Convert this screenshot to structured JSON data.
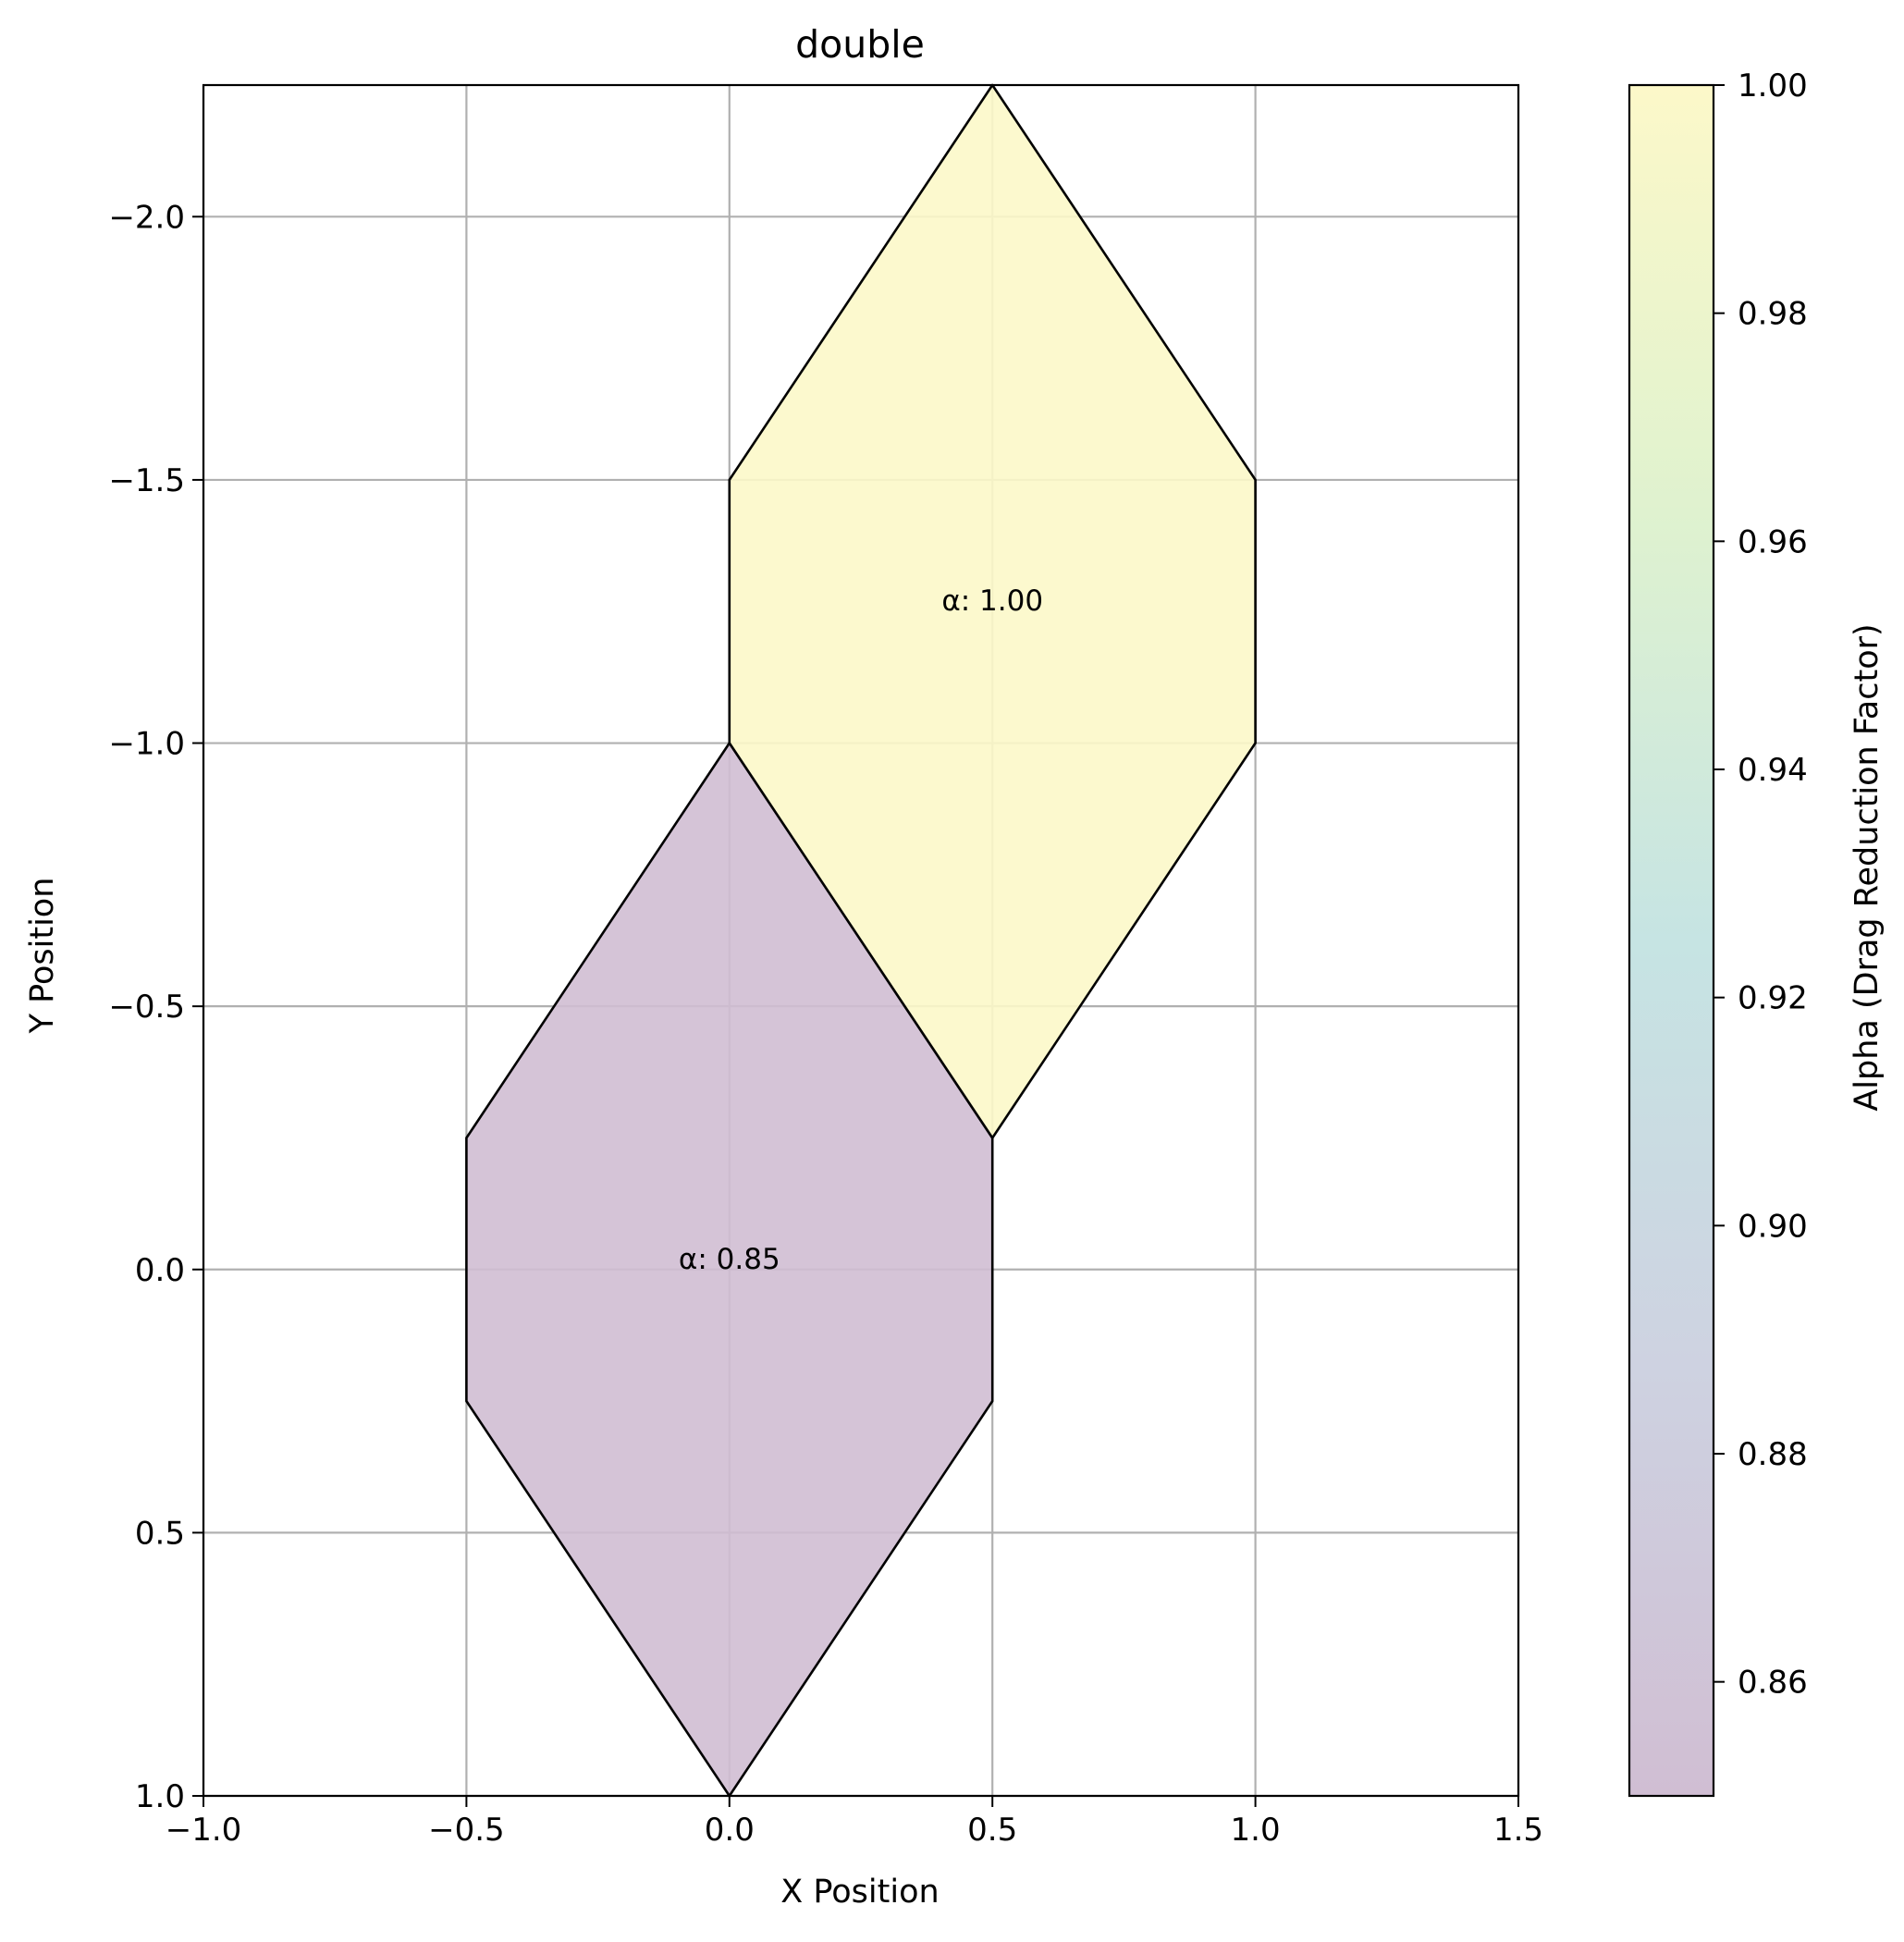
{
  "chart_data": {
    "type": "polygon",
    "title": "double",
    "xlabel": "X Position",
    "ylabel": "Y Position",
    "xlim": [
      -1.0,
      1.5
    ],
    "ylim": [
      1.0,
      -2.25
    ],
    "y_inverted": true,
    "grid": true,
    "x_ticks": [
      -1.0,
      -0.5,
      0.0,
      0.5,
      1.0,
      1.5
    ],
    "x_tick_labels": [
      "−1.0",
      "−0.5",
      "0.0",
      "0.5",
      "1.0",
      "1.5"
    ],
    "y_ticks": [
      -2.0,
      -1.5,
      -1.0,
      -0.5,
      0.0,
      0.5,
      1.0
    ],
    "y_tick_labels": [
      "−2.0",
      "−1.5",
      "−1.0",
      "−0.5",
      "0.0",
      "0.5",
      "1.0"
    ],
    "polygons": [
      {
        "alpha": 0.85,
        "label": "α: 0.85",
        "label_at": [
          0.0,
          0.0
        ],
        "color": "#d0bed3",
        "vertices": [
          [
            0.0,
            -1.0
          ],
          [
            0.5,
            -0.25
          ],
          [
            0.5,
            0.25
          ],
          [
            0.0,
            1.0
          ],
          [
            -0.5,
            0.25
          ],
          [
            -0.5,
            -0.25
          ]
        ]
      },
      {
        "alpha": 1.0,
        "label": "α: 1.00",
        "label_at": [
          0.5,
          -1.25
        ],
        "color": "#fcf8c9",
        "vertices": [
          [
            0.5,
            -2.25
          ],
          [
            1.0,
            -1.5
          ],
          [
            1.0,
            -1.0
          ],
          [
            0.5,
            -0.25
          ],
          [
            0.0,
            -1.0
          ],
          [
            0.0,
            -1.5
          ]
        ]
      }
    ],
    "colorbar": {
      "label": "Alpha (Drag Reduction Factor)",
      "range": [
        0.85,
        1.0
      ],
      "ticks": [
        0.86,
        0.88,
        0.9,
        0.92,
        0.94,
        0.96,
        0.98,
        1.0
      ],
      "tick_labels": [
        "0.86",
        "0.88",
        "0.90",
        "0.92",
        "0.94",
        "0.96",
        "0.98",
        "1.00"
      ],
      "colors": [
        "#d0bed3",
        "#ced2e1",
        "#c6e4e3",
        "#dff2cf",
        "#fcf8c9"
      ]
    }
  }
}
